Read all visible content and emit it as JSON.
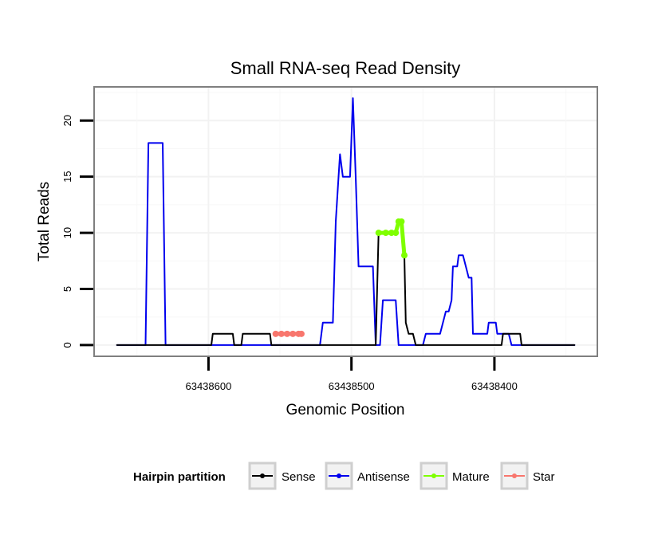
{
  "chart_data": {
    "type": "line",
    "title": "Small RNA-seq Read Density",
    "xlabel": "Genomic Position",
    "ylabel": "Total Reads",
    "xlim": [
      63438680,
      63438328
    ],
    "ylim": [
      -1,
      23
    ],
    "x_reversed": true,
    "x_ticks": [
      63438600,
      63438500,
      63438400
    ],
    "x_tick_labels": [
      "63438600",
      "63438500",
      "63438400"
    ],
    "y_ticks": [
      0,
      5,
      10,
      15,
      20
    ],
    "y_tick_labels": [
      "0",
      "5",
      "10",
      "15",
      "20"
    ],
    "grid": true,
    "legend": {
      "title": "Hairpin partition",
      "position": "bottom",
      "entries": [
        "Sense",
        "Antisense",
        "Mature",
        "Star"
      ]
    },
    "series": [
      {
        "name": "Antisense",
        "color": "#0000ee",
        "points": [
          [
            63438664,
            0
          ],
          [
            63438644,
            0
          ],
          [
            63438642,
            18
          ],
          [
            63438632,
            18
          ],
          [
            63438630,
            0
          ],
          [
            63438540,
            0
          ],
          [
            63438522,
            0
          ],
          [
            63438520,
            2
          ],
          [
            63438513,
            2
          ],
          [
            63438511,
            11
          ],
          [
            63438509,
            15
          ],
          [
            63438508,
            17
          ],
          [
            63438506,
            15
          ],
          [
            63438501,
            15
          ],
          [
            63438499,
            22
          ],
          [
            63438497,
            15
          ],
          [
            63438495,
            7
          ],
          [
            63438485,
            7
          ],
          [
            63438483,
            0
          ],
          [
            63438480,
            0
          ],
          [
            63438478,
            4
          ],
          [
            63438469,
            4
          ],
          [
            63438467,
            0
          ],
          [
            63438450,
            0
          ],
          [
            63438448,
            1
          ],
          [
            63438438,
            1
          ],
          [
            63438436,
            2
          ],
          [
            63438434,
            3
          ],
          [
            63438432,
            3
          ],
          [
            63438430,
            4
          ],
          [
            63438429,
            7
          ],
          [
            63438426,
            7
          ],
          [
            63438425,
            8
          ],
          [
            63438422,
            8
          ],
          [
            63438420,
            7
          ],
          [
            63438418,
            6
          ],
          [
            63438416,
            6
          ],
          [
            63438415,
            1
          ],
          [
            63438405,
            1
          ],
          [
            63438404,
            2
          ],
          [
            63438399,
            2
          ],
          [
            63438398,
            1
          ],
          [
            63438390,
            1
          ],
          [
            63438388,
            0
          ],
          [
            63438344,
            0
          ]
        ]
      },
      {
        "name": "Sense",
        "color": "#000000",
        "points": [
          [
            63438664,
            0
          ],
          [
            63438598,
            0
          ],
          [
            63438597,
            1
          ],
          [
            63438583,
            1
          ],
          [
            63438582,
            0
          ],
          [
            63438577,
            0
          ],
          [
            63438576,
            1
          ],
          [
            63438557,
            1
          ],
          [
            63438556,
            0
          ],
          [
            63438483,
            0
          ],
          [
            63438481,
            10
          ],
          [
            63438469,
            10
          ],
          [
            63438467,
            11
          ],
          [
            63438465,
            11
          ],
          [
            63438463,
            8
          ],
          [
            63438462,
            2
          ],
          [
            63438460,
            1
          ],
          [
            63438457,
            1
          ],
          [
            63438455,
            0
          ],
          [
            63438395,
            0
          ],
          [
            63438394,
            1
          ],
          [
            63438382,
            1
          ],
          [
            63438381,
            0
          ],
          [
            63438344,
            0
          ]
        ]
      },
      {
        "name": "Mature",
        "color": "#7fff00",
        "points": [
          [
            63438481,
            10
          ],
          [
            63438476,
            10
          ],
          [
            63438472,
            10
          ],
          [
            63438469,
            10
          ],
          [
            63438467,
            11
          ],
          [
            63438465,
            11
          ],
          [
            63438463,
            8
          ]
        ]
      },
      {
        "name": "Star",
        "color": "#f8766d",
        "points": [
          [
            63438553,
            1
          ],
          [
            63438549,
            1
          ],
          [
            63438545,
            1
          ],
          [
            63438541,
            1
          ],
          [
            63438537,
            1
          ],
          [
            63438535,
            1
          ]
        ]
      }
    ]
  }
}
